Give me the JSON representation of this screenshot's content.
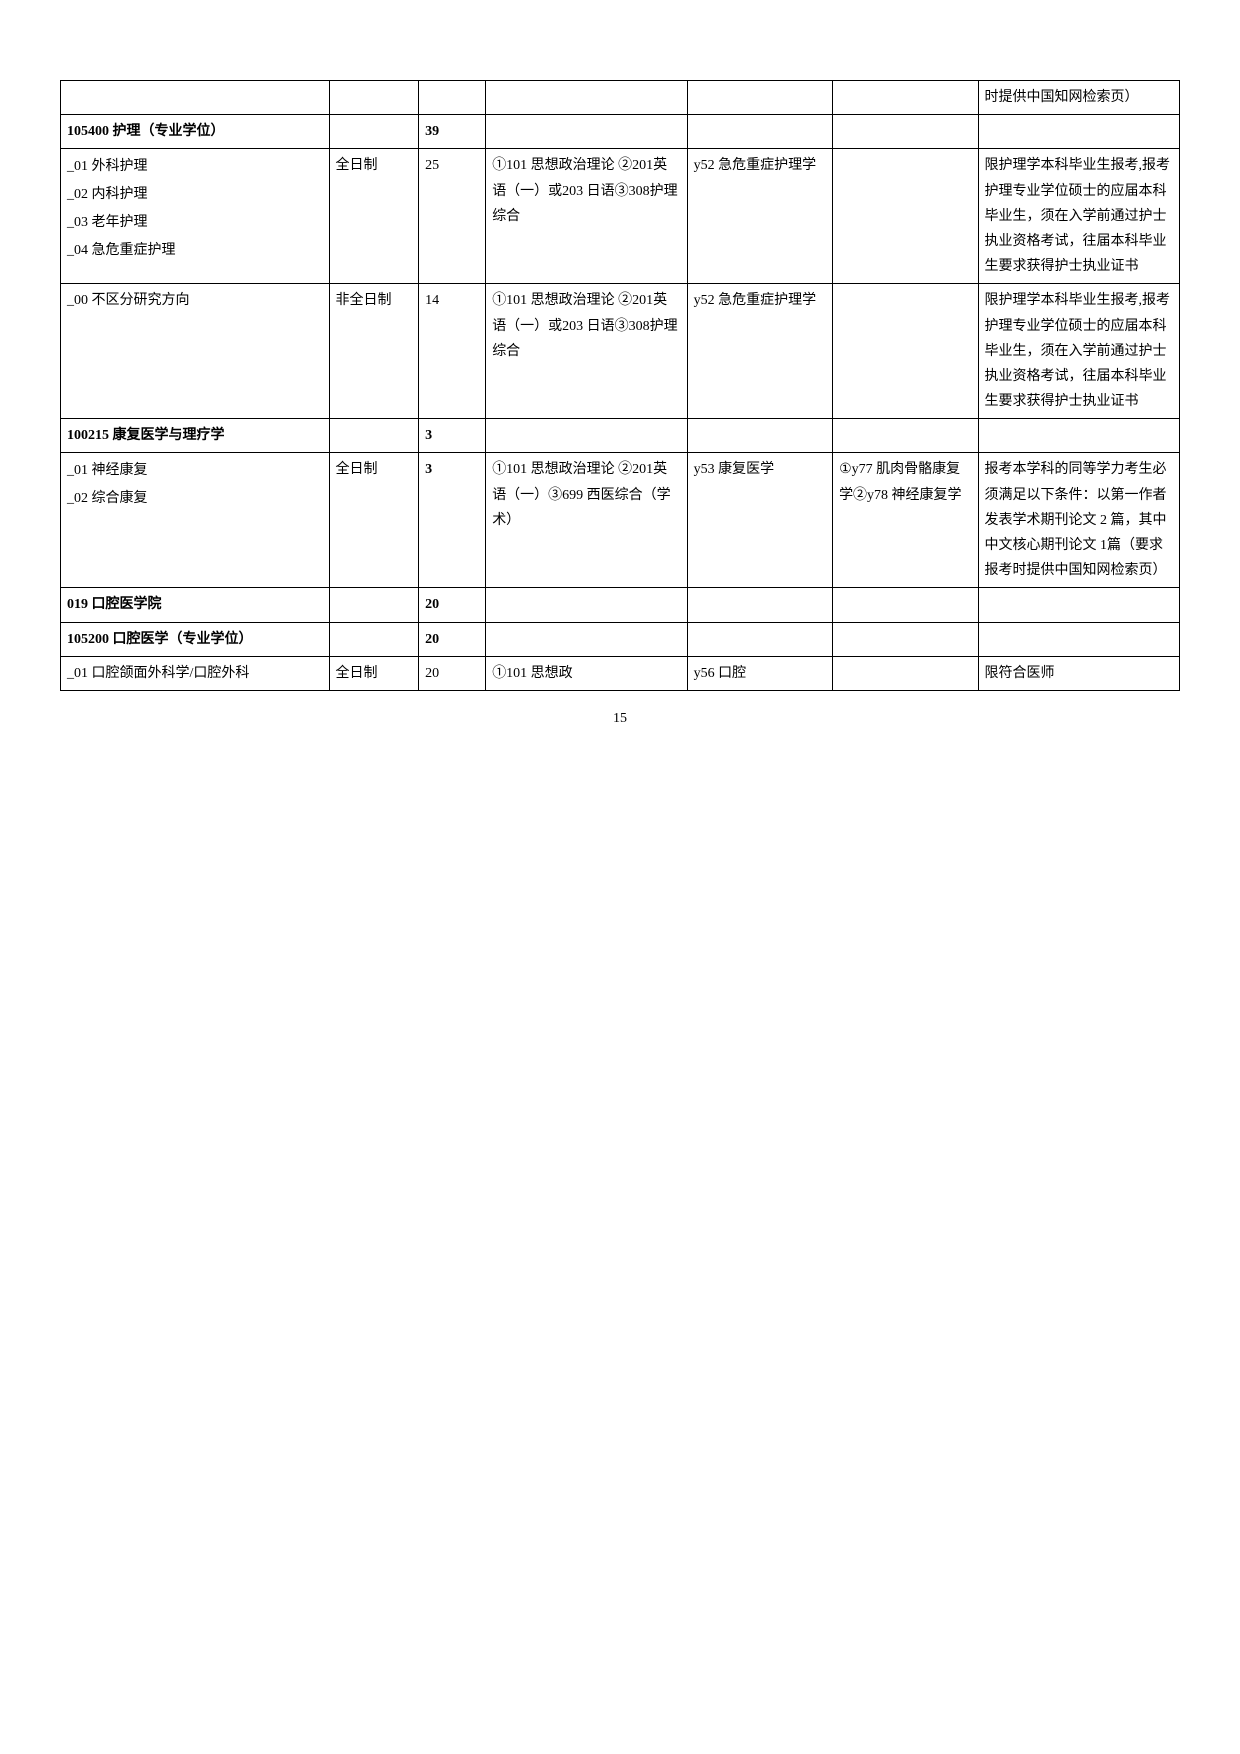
{
  "rows": [
    {
      "cells": [
        "",
        "",
        "",
        "",
        "",
        "",
        "时提供中国知网检索页）"
      ],
      "bold": false
    },
    {
      "cells": [
        "105400 护理（专业学位）",
        "",
        "39",
        "",
        "",
        "",
        ""
      ],
      "bold": true
    },
    {
      "cells": [
        "_01 外科护理\n_02 内科护理\n_03 老年护理\n_04 急危重症护理",
        "全日制",
        "25",
        "①101 思想政治理论 ②201英语（一）或203 日语③308护理综合",
        "y52 急危重症护理学",
        "",
        "限护理学本科毕业生报考,报考护理专业学位硕士的应届本科毕业生，须在入学前通过护士执业资格考试，往届本科毕业生要求获得护士执业证书"
      ],
      "bold": false,
      "multi": true
    },
    {
      "cells": [
        "_00 不区分研究方向",
        "非全日制",
        "14",
        "①101 思想政治理论 ②201英语（一）或203 日语③308护理综合",
        "y52 急危重症护理学",
        "",
        "限护理学本科毕业生报考,报考护理专业学位硕士的应届本科毕业生，须在入学前通过护士执业资格考试，往届本科毕业生要求获得护士执业证书"
      ],
      "bold": false
    },
    {
      "cells": [
        "100215 康复医学与理疗学",
        "",
        "3",
        "",
        "",
        "",
        ""
      ],
      "bold": true
    },
    {
      "cells": [
        "_01 神经康复\n_02 综合康复",
        "全日制",
        "3",
        "①101 思想政治理论 ②201英语（一）③699 西医综合（学术）",
        "y53 康复医学",
        "①y77 肌肉骨骼康复学②y78 神经康复学",
        "报考本学科的同等学力考生必须满足以下条件：以第一作者发表学术期刊论文 2 篇，其中中文核心期刊论文 1篇（要求报考时提供中国知网检索页）"
      ],
      "bold": false,
      "multi": true,
      "boldCount": true
    },
    {
      "cells": [
        "019 口腔医学院",
        "",
        "20",
        "",
        "",
        "",
        ""
      ],
      "bold": true
    },
    {
      "cells": [
        "105200 口腔医学（专业学位）",
        "",
        "20",
        "",
        "",
        "",
        ""
      ],
      "bold": true
    },
    {
      "cells": [
        "_01 口腔颌面外科学/口腔外科",
        "全日制",
        "20",
        "①101 思想政",
        "y56 口腔",
        "",
        "限符合医师"
      ],
      "bold": false
    }
  ],
  "pageNum": "15"
}
